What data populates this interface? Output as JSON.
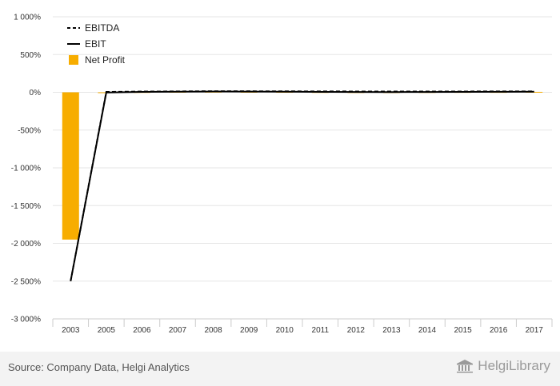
{
  "chart_data": {
    "type": "bar",
    "categories": [
      "2003",
      "2005",
      "2006",
      "2007",
      "2008",
      "2009",
      "2010",
      "2011",
      "2012",
      "2013",
      "2014",
      "2015",
      "2016",
      "2017"
    ],
    "ylim": [
      -3000,
      1000
    ],
    "yticks": [
      1000,
      500,
      0,
      -500,
      -1000,
      -1500,
      -2000,
      -2500,
      -3000
    ],
    "ytick_labels": [
      "1 000%",
      "500%",
      "0%",
      "-500%",
      "-1 000%",
      "-1 500%",
      "-2 000%",
      "-2 500%",
      "-3 000%"
    ],
    "grid": true,
    "legend_position": "top-left",
    "series": [
      {
        "name": "EBITDA",
        "type": "line",
        "style": "dashed",
        "color": "#000000",
        "values": [
          -2500,
          5,
          10,
          12,
          15,
          14,
          13,
          12,
          11,
          10,
          10,
          11,
          12,
          12
        ]
      },
      {
        "name": "EBIT",
        "type": "line",
        "style": "solid",
        "color": "#000000",
        "values": [
          -2500,
          -3,
          5,
          8,
          10,
          9,
          8,
          5,
          4,
          3,
          4,
          5,
          6,
          8
        ]
      },
      {
        "name": "Net Profit",
        "type": "bar",
        "color": "#f7ad00",
        "values": [
          -1950,
          -10,
          3,
          6,
          7,
          6,
          5,
          3,
          2,
          2,
          3,
          4,
          4,
          6
        ]
      }
    ]
  },
  "footer": {
    "source": "Source: Company Data, Helgi Analytics",
    "brand": "HelgiLibrary"
  },
  "colors": {
    "grid": "#e6e6e6",
    "axis": "#cccccc",
    "footer_bg": "#f3f3f3"
  }
}
